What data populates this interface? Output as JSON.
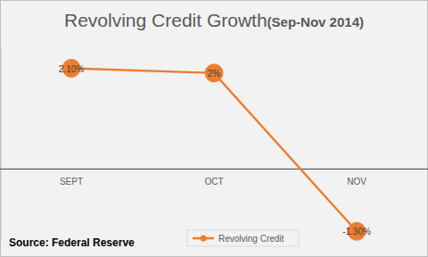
{
  "chart_data": {
    "type": "line",
    "title": "Revolving Credit Growth",
    "subtitle": "(Sep-Nov 2014)",
    "annotations": [
      "Source: Federal Reserve"
    ],
    "categories": [
      "SEPT",
      "OCT",
      "NOV"
    ],
    "series": [
      {
        "name": "Revolving Credit",
        "color": "#ED7D31",
        "marker": "circle",
        "line_style": "solid",
        "values": [
          2.1,
          2,
          -1.3
        ],
        "value_labels": [
          "2.10%",
          "2%",
          "-1.30%"
        ]
      }
    ],
    "ylim": [
      -1.5,
      2.5
    ],
    "yticks": [
      0
    ],
    "tick_labels": "x",
    "data_labels": true,
    "legend": "bottom",
    "grid": false
  }
}
